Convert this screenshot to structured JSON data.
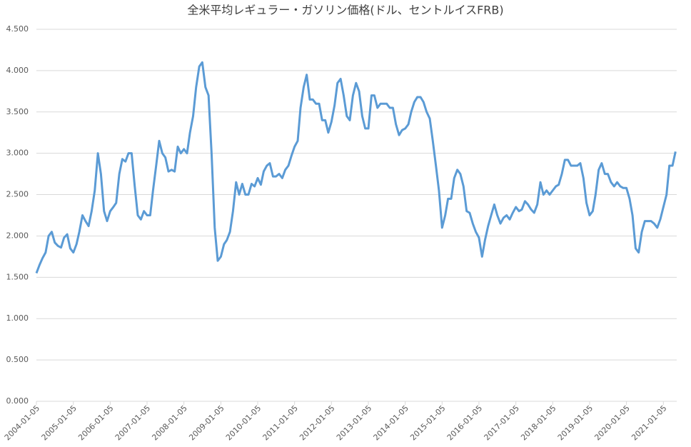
{
  "chart_data": {
    "type": "line",
    "title": "全米平均レギュラー・ガソリン価格(ドル、セントルイスFRB)",
    "xlim": [
      "2004-01-05",
      "2021-05-17"
    ],
    "xticks": [
      "2004-01-05",
      "2005-01-05",
      "2006-01-05",
      "2007-01-05",
      "2008-01-05",
      "2009-01-05",
      "2010-01-05",
      "2011-01-05",
      "2012-01-05",
      "2013-01-05",
      "2014-01-05",
      "2015-01-05",
      "2016-01-05",
      "2017-01-05",
      "2018-01-05",
      "2019-01-05",
      "2020-01-05",
      "2021-01-05"
    ],
    "ylim": [
      0,
      4.5
    ],
    "yticks": [
      {
        "value": 0,
        "label": "0.000"
      },
      {
        "value": 0.5,
        "label": "0.500"
      },
      {
        "value": 1,
        "label": "1.000"
      },
      {
        "value": 1.5,
        "label": "1.500"
      },
      {
        "value": 2,
        "label": "2.000"
      },
      {
        "value": 2.5,
        "label": "2.500"
      },
      {
        "value": 3,
        "label": "3.000"
      },
      {
        "value": 3.5,
        "label": "3.500"
      },
      {
        "value": 4,
        "label": "4.000"
      },
      {
        "value": 4.5,
        "label": "4.500"
      }
    ],
    "grid": true,
    "x": [
      "2004-01-05",
      "2004-02-05",
      "2004-03-05",
      "2004-04-05",
      "2004-05-05",
      "2004-06-05",
      "2004-07-05",
      "2004-08-05",
      "2004-09-05",
      "2004-10-05",
      "2004-11-05",
      "2004-12-05",
      "2005-01-05",
      "2005-02-05",
      "2005-03-05",
      "2005-04-05",
      "2005-05-05",
      "2005-06-05",
      "2005-07-05",
      "2005-08-05",
      "2005-09-05",
      "2005-10-05",
      "2005-11-05",
      "2005-12-05",
      "2006-01-05",
      "2006-02-05",
      "2006-03-05",
      "2006-04-05",
      "2006-05-05",
      "2006-06-05",
      "2006-07-05",
      "2006-08-05",
      "2006-09-05",
      "2006-10-05",
      "2006-11-05",
      "2006-12-05",
      "2007-01-05",
      "2007-02-05",
      "2007-03-05",
      "2007-04-05",
      "2007-05-05",
      "2007-06-05",
      "2007-07-05",
      "2007-08-05",
      "2007-09-05",
      "2007-10-05",
      "2007-11-05",
      "2007-12-05",
      "2008-01-05",
      "2008-02-05",
      "2008-03-05",
      "2008-04-05",
      "2008-05-05",
      "2008-06-05",
      "2008-07-05",
      "2008-08-05",
      "2008-09-05",
      "2008-10-05",
      "2008-11-05",
      "2008-12-05",
      "2009-01-05",
      "2009-02-05",
      "2009-03-05",
      "2009-04-05",
      "2009-05-05",
      "2009-06-05",
      "2009-07-05",
      "2009-08-05",
      "2009-09-05",
      "2009-10-05",
      "2009-11-05",
      "2009-12-05",
      "2010-01-05",
      "2010-02-05",
      "2010-03-05",
      "2010-04-05",
      "2010-05-05",
      "2010-06-05",
      "2010-07-05",
      "2010-08-05",
      "2010-09-05",
      "2010-10-05",
      "2010-11-05",
      "2010-12-05",
      "2011-01-05",
      "2011-02-05",
      "2011-03-05",
      "2011-04-05",
      "2011-05-05",
      "2011-06-05",
      "2011-07-05",
      "2011-08-05",
      "2011-09-05",
      "2011-10-05",
      "2011-11-05",
      "2011-12-05",
      "2012-01-05",
      "2012-02-05",
      "2012-03-05",
      "2012-04-05",
      "2012-05-05",
      "2012-06-05",
      "2012-07-05",
      "2012-08-05",
      "2012-09-05",
      "2012-10-05",
      "2012-11-05",
      "2012-12-05",
      "2013-01-05",
      "2013-02-05",
      "2013-03-05",
      "2013-04-05",
      "2013-05-05",
      "2013-06-05",
      "2013-07-05",
      "2013-08-05",
      "2013-09-05",
      "2013-10-05",
      "2013-11-05",
      "2013-12-05",
      "2014-01-05",
      "2014-02-05",
      "2014-03-05",
      "2014-04-05",
      "2014-05-05",
      "2014-06-05",
      "2014-07-05",
      "2014-08-05",
      "2014-09-05",
      "2014-10-05",
      "2014-11-05",
      "2014-12-05",
      "2015-01-05",
      "2015-02-05",
      "2015-03-05",
      "2015-04-05",
      "2015-05-05",
      "2015-06-05",
      "2015-07-05",
      "2015-08-05",
      "2015-09-05",
      "2015-10-05",
      "2015-11-05",
      "2015-12-05",
      "2016-01-05",
      "2016-02-05",
      "2016-03-05",
      "2016-04-05",
      "2016-05-05",
      "2016-06-05",
      "2016-07-05",
      "2016-08-05",
      "2016-09-05",
      "2016-10-05",
      "2016-11-05",
      "2016-12-05",
      "2017-01-05",
      "2017-02-05",
      "2017-03-05",
      "2017-04-05",
      "2017-05-05",
      "2017-06-05",
      "2017-07-05",
      "2017-08-05",
      "2017-09-05",
      "2017-10-05",
      "2017-11-05",
      "2017-12-05",
      "2018-01-05",
      "2018-02-05",
      "2018-03-05",
      "2018-04-05",
      "2018-05-05",
      "2018-06-05",
      "2018-07-05",
      "2018-08-05",
      "2018-09-05",
      "2018-10-05",
      "2018-11-05",
      "2018-12-05",
      "2019-01-05",
      "2019-02-05",
      "2019-03-05",
      "2019-04-05",
      "2019-05-05",
      "2019-06-05",
      "2019-07-05",
      "2019-08-05",
      "2019-09-05",
      "2019-10-05",
      "2019-11-05",
      "2019-12-05",
      "2020-01-05",
      "2020-02-05",
      "2020-03-05",
      "2020-04-05",
      "2020-05-05",
      "2020-06-05",
      "2020-07-05",
      "2020-08-05",
      "2020-09-05",
      "2020-10-05",
      "2020-11-05",
      "2020-12-05",
      "2021-01-05",
      "2021-02-05",
      "2021-03-05",
      "2021-04-05",
      "2021-05-05"
    ],
    "series": [
      {
        "color": "#5b9bd5",
        "values": [
          1.55,
          1.65,
          1.73,
          1.8,
          2.0,
          2.05,
          1.92,
          1.88,
          1.86,
          1.98,
          2.02,
          1.85,
          1.8,
          1.9,
          2.05,
          2.25,
          2.18,
          2.12,
          2.3,
          2.55,
          3.0,
          2.75,
          2.3,
          2.18,
          2.3,
          2.35,
          2.4,
          2.75,
          2.93,
          2.9,
          3.0,
          3.0,
          2.6,
          2.25,
          2.2,
          2.3,
          2.25,
          2.25,
          2.55,
          2.85,
          3.15,
          3.0,
          2.95,
          2.78,
          2.8,
          2.78,
          3.08,
          3.0,
          3.05,
          3.0,
          3.25,
          3.45,
          3.8,
          4.05,
          4.1,
          3.8,
          3.7,
          3.0,
          2.1,
          1.7,
          1.75,
          1.9,
          1.95,
          2.05,
          2.3,
          2.65,
          2.5,
          2.63,
          2.5,
          2.5,
          2.63,
          2.6,
          2.7,
          2.62,
          2.78,
          2.85,
          2.88,
          2.72,
          2.72,
          2.75,
          2.7,
          2.8,
          2.85,
          2.97,
          3.08,
          3.15,
          3.55,
          3.8,
          3.95,
          3.65,
          3.65,
          3.6,
          3.6,
          3.4,
          3.4,
          3.25,
          3.38,
          3.58,
          3.85,
          3.9,
          3.7,
          3.45,
          3.4,
          3.7,
          3.85,
          3.75,
          3.45,
          3.3,
          3.3,
          3.7,
          3.7,
          3.55,
          3.6,
          3.6,
          3.6,
          3.55,
          3.55,
          3.35,
          3.22,
          3.28,
          3.3,
          3.35,
          3.5,
          3.62,
          3.68,
          3.68,
          3.62,
          3.5,
          3.42,
          3.15,
          2.85,
          2.55,
          2.1,
          2.25,
          2.45,
          2.45,
          2.7,
          2.8,
          2.75,
          2.6,
          2.3,
          2.28,
          2.15,
          2.05,
          1.98,
          1.75,
          1.95,
          2.12,
          2.25,
          2.38,
          2.25,
          2.15,
          2.22,
          2.25,
          2.2,
          2.28,
          2.35,
          2.3,
          2.32,
          2.42,
          2.38,
          2.32,
          2.28,
          2.38,
          2.65,
          2.5,
          2.55,
          2.5,
          2.55,
          2.6,
          2.62,
          2.75,
          2.92,
          2.92,
          2.85,
          2.85,
          2.85,
          2.88,
          2.7,
          2.4,
          2.25,
          2.3,
          2.5,
          2.8,
          2.88,
          2.75,
          2.75,
          2.65,
          2.6,
          2.65,
          2.6,
          2.58,
          2.58,
          2.45,
          2.25,
          1.85,
          1.8,
          2.05,
          2.18,
          2.18,
          2.18,
          2.15,
          2.1,
          2.2,
          2.35,
          2.5,
          2.85,
          2.85,
          3.02
        ]
      }
    ]
  }
}
